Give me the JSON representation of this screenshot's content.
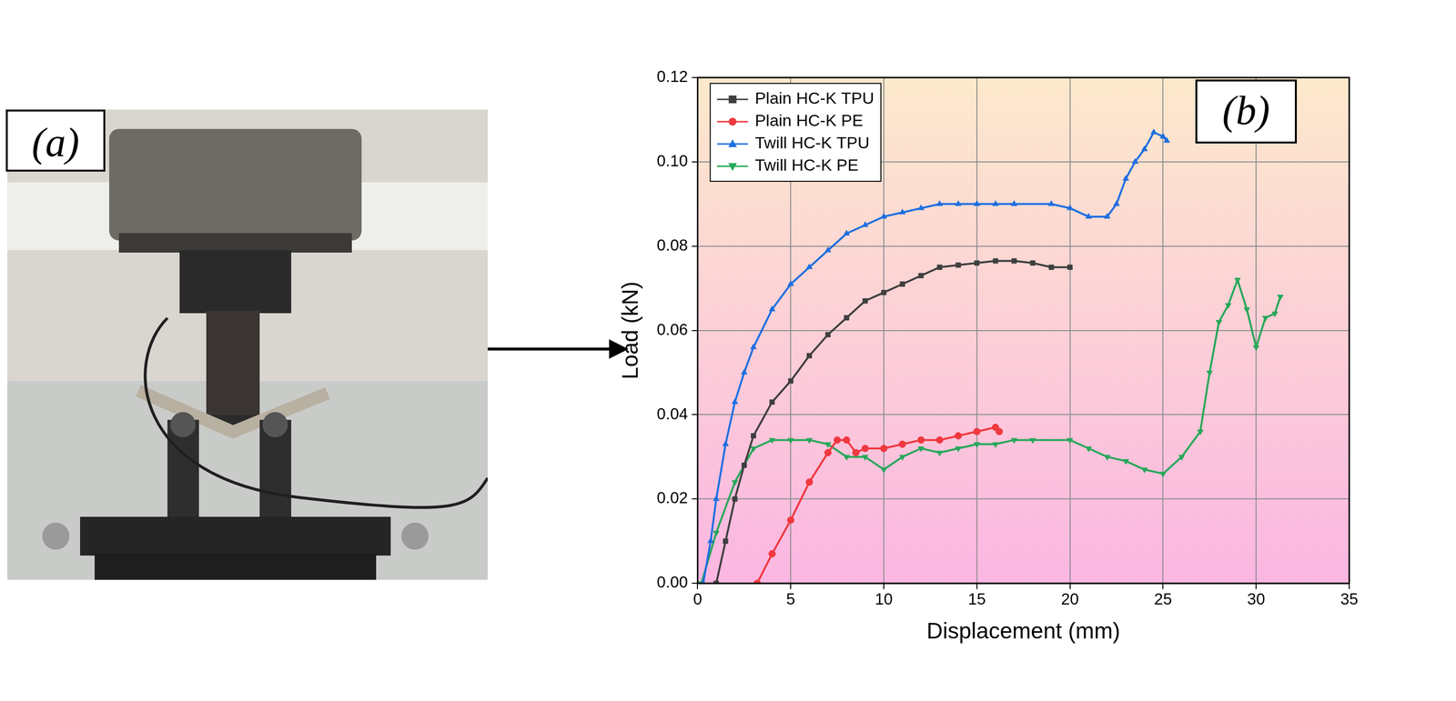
{
  "panel_labels": [
    "(a)",
    "(b)"
  ],
  "chart_data": {
    "type": "line",
    "x_label": "Displacement (mm)",
    "y_label": "Load (kN)",
    "xlim": [
      0,
      35
    ],
    "xticks": [
      0,
      5,
      10,
      15,
      20,
      25,
      30,
      35
    ],
    "ylim": [
      0,
      0.12
    ],
    "yticks": [
      {
        "value": 0,
        "label": "0.00"
      },
      {
        "value": 0.02,
        "label": "0.02"
      },
      {
        "value": 0.04,
        "label": "0.04"
      },
      {
        "value": 0.06,
        "label": "0.06"
      },
      {
        "value": 0.08,
        "label": "0.08"
      },
      {
        "value": 0.1,
        "label": "0.10"
      },
      {
        "value": 0.12,
        "label": "0.12"
      }
    ],
    "grid": true,
    "legend": "upper left",
    "series": [
      {
        "name": "Plain HC-K TPU",
        "color": "#3f3f3f",
        "marker": "square",
        "x": [
          1.0,
          1.5,
          2,
          2.5,
          3,
          4,
          5,
          6,
          7,
          8,
          9,
          10,
          11,
          12,
          13,
          14,
          15,
          16,
          17,
          18,
          19,
          20
        ],
        "values": [
          0,
          0.01,
          0.02,
          0.028,
          0.035,
          0.043,
          0.048,
          0.054,
          0.059,
          0.063,
          0.067,
          0.069,
          0.071,
          0.073,
          0.075,
          0.0755,
          0.076,
          0.0765,
          0.0765,
          0.076,
          0.075,
          0.075
        ]
      },
      {
        "name": "Plain HC-K PE",
        "color": "#f0383f",
        "marker": "circle",
        "x": [
          3.2,
          4,
          5,
          6,
          7,
          7.5,
          8,
          8.5,
          9,
          10,
          11,
          12,
          13,
          14,
          15,
          16,
          16.2
        ],
        "values": [
          0,
          0.007,
          0.015,
          0.024,
          0.031,
          0.034,
          0.034,
          0.031,
          0.032,
          0.032,
          0.033,
          0.034,
          0.034,
          0.035,
          0.036,
          0.037,
          0.036
        ]
      },
      {
        "name": "Twill HC-K TPU",
        "color": "#1f6fe0",
        "marker": "triangle",
        "x": [
          0.3,
          0.7,
          1,
          1.5,
          2,
          2.5,
          3,
          4,
          5,
          6,
          7,
          8,
          9,
          10,
          11,
          12,
          13,
          14,
          15,
          16,
          17,
          19,
          20,
          21,
          22,
          22.5,
          23,
          23.5,
          24,
          24.5,
          25,
          25.2
        ],
        "values": [
          0,
          0.01,
          0.02,
          0.033,
          0.043,
          0.05,
          0.056,
          0.065,
          0.071,
          0.075,
          0.079,
          0.083,
          0.085,
          0.087,
          0.088,
          0.089,
          0.09,
          0.09,
          0.09,
          0.09,
          0.09,
          0.09,
          0.089,
          0.087,
          0.087,
          0.09,
          0.096,
          0.1,
          0.103,
          0.107,
          0.106,
          0.105
        ]
      },
      {
        "name": "Twill HC-K PE",
        "color": "#27a85a",
        "marker": "triangle_down",
        "x": [
          0.2,
          1,
          2,
          3,
          4,
          5,
          6,
          7,
          8,
          9,
          10,
          11,
          12,
          13,
          14,
          15,
          16,
          17,
          18,
          20,
          21,
          22,
          23,
          24,
          25,
          26,
          27,
          27.5,
          28,
          28.5,
          29,
          29.5,
          30,
          30.5,
          31,
          31.3
        ],
        "values": [
          0,
          0.012,
          0.024,
          0.032,
          0.034,
          0.034,
          0.034,
          0.033,
          0.03,
          0.03,
          0.027,
          0.03,
          0.032,
          0.031,
          0.032,
          0.033,
          0.033,
          0.034,
          0.034,
          0.034,
          0.032,
          0.03,
          0.029,
          0.027,
          0.026,
          0.03,
          0.036,
          0.05,
          0.062,
          0.066,
          0.072,
          0.065,
          0.056,
          0.063,
          0.064,
          0.068
        ]
      }
    ]
  }
}
